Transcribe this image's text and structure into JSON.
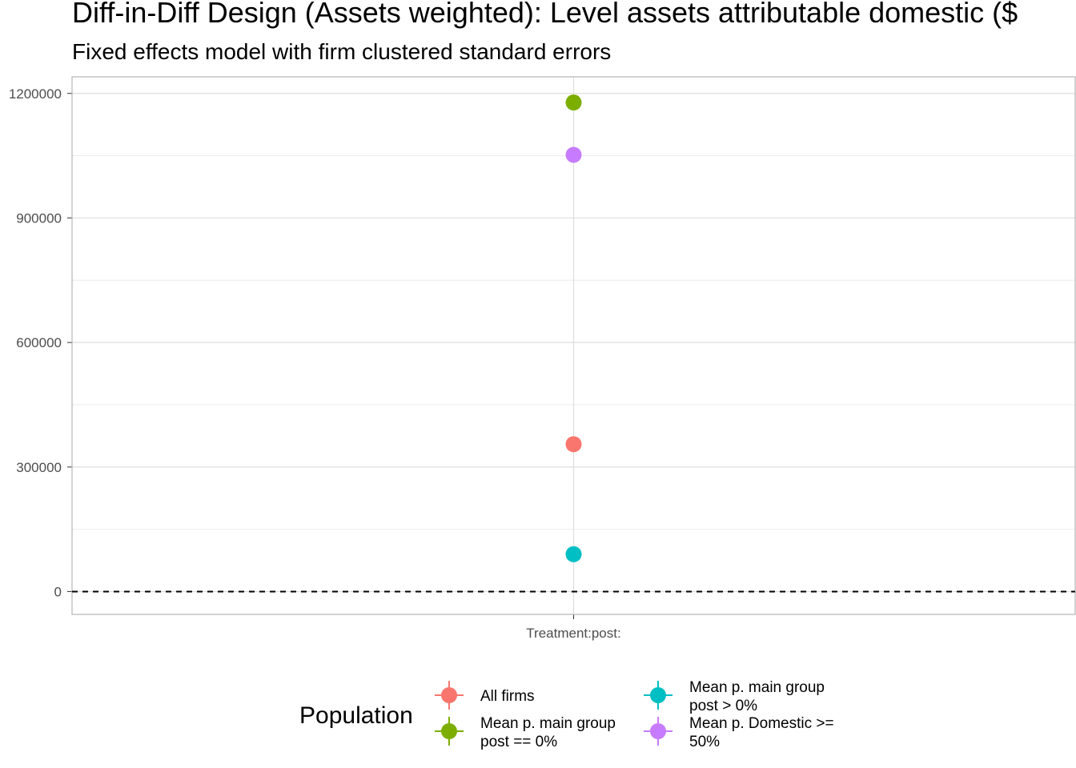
{
  "chart_data": {
    "type": "scatter",
    "title": "Diff-in-Diff Design (Assets weighted): Level assets attributable domestic  ($",
    "subtitle": "Fixed effects model with firm clustered standard errors",
    "categories": [
      "Treatment:post:"
    ],
    "y_ticks": [
      "0",
      "300000",
      "600000",
      "900000",
      "1200000"
    ],
    "ylim": [
      -55000,
      1240000
    ],
    "grid": true,
    "reference_line": {
      "y": 0,
      "style": "dashed"
    },
    "legend": {
      "title": "Population",
      "placement": "bottom"
    },
    "series": [
      {
        "name": "All firms",
        "label_lines": [
          "All firms"
        ],
        "color": "#F8766D",
        "x": "Treatment:post:",
        "y": 355000
      },
      {
        "name": "Mean p. main group post == 0%",
        "label_lines": [
          "Mean p. main group",
          "post == 0%"
        ],
        "color": "#7CAE00",
        "x": "Treatment:post:",
        "y": 1178000
      },
      {
        "name": "Mean p. main group post > 0%",
        "label_lines": [
          "Mean p. main group",
          "post > 0%"
        ],
        "color": "#00BFC4",
        "x": "Treatment:post:",
        "y": 90000
      },
      {
        "name": "Mean p. Domestic >= 50%",
        "label_lines": [
          "Mean p. Domestic >=",
          "50%"
        ],
        "color": "#C77CFF",
        "x": "Treatment:post:",
        "y": 1052000
      }
    ]
  }
}
